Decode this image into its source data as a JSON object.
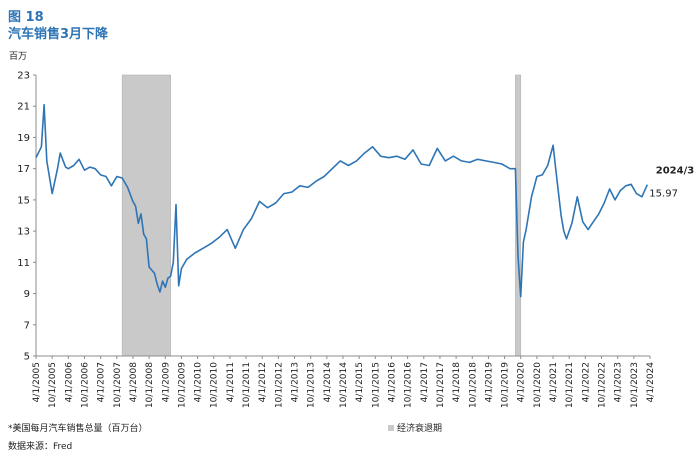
{
  "header": {
    "figure_label": "图 18",
    "title": "汽车销售3月下降"
  },
  "unit_label": "百万",
  "footnote": "*美国每月汽车销售总量（百万台）",
  "source": "数据来源：Fred",
  "legend": {
    "recession_label": "经济衰退期"
  },
  "colors": {
    "line": "#2E75B6",
    "recession": "#c9c9c9",
    "axis": "#8c8c8c"
  },
  "chart_data": {
    "type": "line",
    "ylim": [
      5,
      23
    ],
    "yticks": [
      5,
      7,
      9,
      11,
      13,
      15,
      17,
      19,
      21,
      23
    ],
    "x_range": [
      "2005-04",
      "2024-04"
    ],
    "xtick_labels": [
      "4/1/2005",
      "10/1/2005",
      "4/1/2006",
      "10/1/2006",
      "4/1/2007",
      "10/1/2007",
      "4/1/2008",
      "10/1/2008",
      "4/1/2009",
      "10/1/2009",
      "4/1/2010",
      "10/1/2010",
      "4/1/2011",
      "10/1/2011",
      "4/1/2012",
      "10/1/2012",
      "4/1/2013",
      "10/1/2013",
      "4/1/2014",
      "10/1/2014",
      "4/1/2015",
      "10/1/2015",
      "4/1/2016",
      "10/1/2016",
      "4/1/2017",
      "10/1/2017",
      "4/1/2018",
      "10/1/2018",
      "4/1/2019",
      "10/1/2019",
      "4/1/2020",
      "10/1/2020",
      "4/1/2021",
      "10/1/2021",
      "4/1/2022",
      "10/1/2022",
      "4/1/2023",
      "10/1/2023",
      "4/1/2024"
    ],
    "recessions": [
      {
        "start": "2007-12",
        "end": "2009-06"
      },
      {
        "start": "2020-02",
        "end": "2020-04"
      }
    ],
    "annotation": {
      "date_label": "2024/3",
      "value_label": "15.97"
    },
    "series": [
      {
        "x": [
          "2005-04",
          "2005-06",
          "2005-07",
          "2005-08",
          "2005-10",
          "2005-12",
          "2006-01",
          "2006-03",
          "2006-04",
          "2006-06",
          "2006-08",
          "2006-10",
          "2006-12",
          "2007-02",
          "2007-04",
          "2007-06",
          "2007-08",
          "2007-10",
          "2007-12",
          "2008-02",
          "2008-04",
          "2008-05",
          "2008-06",
          "2008-07",
          "2008-08",
          "2008-09",
          "2008-10",
          "2008-12",
          "2009-01",
          "2009-02",
          "2009-03",
          "2009-04",
          "2009-05",
          "2009-06",
          "2009-07",
          "2009-08",
          "2009-09",
          "2009-10",
          "2009-12",
          "2010-03",
          "2010-06",
          "2010-09",
          "2010-12",
          "2011-03",
          "2011-06",
          "2011-09",
          "2011-12",
          "2012-03",
          "2012-06",
          "2012-09",
          "2012-12",
          "2013-03",
          "2013-06",
          "2013-09",
          "2013-12",
          "2014-03",
          "2014-06",
          "2014-09",
          "2014-12",
          "2015-03",
          "2015-06",
          "2015-09",
          "2015-12",
          "2016-03",
          "2016-06",
          "2016-09",
          "2016-12",
          "2017-03",
          "2017-06",
          "2017-09",
          "2017-12",
          "2018-03",
          "2018-06",
          "2018-09",
          "2018-12",
          "2019-03",
          "2019-06",
          "2019-09",
          "2019-12",
          "2020-01",
          "2020-02",
          "2020-03",
          "2020-04",
          "2020-05",
          "2020-06",
          "2020-08",
          "2020-10",
          "2020-12",
          "2021-02",
          "2021-04",
          "2021-05",
          "2021-06",
          "2021-07",
          "2021-08",
          "2021-09",
          "2021-11",
          "2022-01",
          "2022-03",
          "2022-05",
          "2022-07",
          "2022-09",
          "2022-11",
          "2023-01",
          "2023-03",
          "2023-05",
          "2023-07",
          "2023-09",
          "2023-11",
          "2024-01",
          "2024-03"
        ],
        "values": [
          17.7,
          18.4,
          21.1,
          17.5,
          15.4,
          17.0,
          18.0,
          17.1,
          17.0,
          17.2,
          17.6,
          16.9,
          17.1,
          17.0,
          16.6,
          16.5,
          15.9,
          16.5,
          16.4,
          15.8,
          14.9,
          14.6,
          13.5,
          14.1,
          12.8,
          12.5,
          10.7,
          10.3,
          9.6,
          9.1,
          9.8,
          9.4,
          10.0,
          10.1,
          11.0,
          14.7,
          9.5,
          10.6,
          11.2,
          11.6,
          11.9,
          12.2,
          12.6,
          13.1,
          11.9,
          13.1,
          13.8,
          14.9,
          14.5,
          14.8,
          15.4,
          15.5,
          15.9,
          15.8,
          16.2,
          16.5,
          17.0,
          17.5,
          17.2,
          17.5,
          18.0,
          18.4,
          17.8,
          17.7,
          17.8,
          17.6,
          18.2,
          17.3,
          17.2,
          18.3,
          17.5,
          17.8,
          17.5,
          17.4,
          17.6,
          17.5,
          17.4,
          17.3,
          17.0,
          17.0,
          17.0,
          11.4,
          8.8,
          12.3,
          13.1,
          15.2,
          16.5,
          16.6,
          17.2,
          18.5,
          17.0,
          15.5,
          14.0,
          13.0,
          12.5,
          13.5,
          15.2,
          13.6,
          13.1,
          13.6,
          14.1,
          14.8,
          15.7,
          15.0,
          15.6,
          15.9,
          16.0,
          15.4,
          15.2,
          15.97
        ]
      }
    ]
  }
}
